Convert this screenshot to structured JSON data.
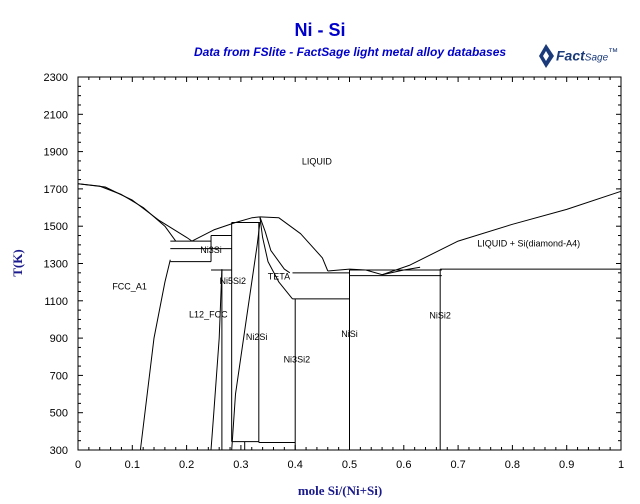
{
  "diagram": {
    "title": "Ni - Si",
    "subtitle": "Data from FSlite - FactSage light metal alloy databases",
    "logo": {
      "brand": "Fact",
      "suffix": "Sage",
      "mark": "™"
    },
    "xlabel": "mole Si/(Ni+Si)",
    "ylabel": "T(K)",
    "x_ticks": [
      "0",
      "0.1",
      "0.2",
      "0.3",
      "0.4",
      "0.5",
      "0.6",
      "0.7",
      "0.8",
      "0.9",
      "1"
    ],
    "y_ticks": [
      "300",
      "500",
      "700",
      "900",
      "1100",
      "1300",
      "1500",
      "1700",
      "1900",
      "2100",
      "2300"
    ],
    "phases": [
      "LIQUID",
      "LIQUID + Si(diamond-A4)",
      "FCC_A1",
      "L12_FCC",
      "Ni3Si",
      "Ni5Si2",
      "TETA",
      "Ni2Si",
      "Ni3Si2",
      "NiSi",
      "NiSi2"
    ],
    "colors": {
      "title": "#0000cc",
      "axis_label": "#1a1a8c",
      "lines": "#000000"
    }
  },
  "chart_data": {
    "type": "phase-diagram",
    "xlim": [
      0,
      1
    ],
    "ylim": [
      300,
      2300
    ],
    "xlabel": "mole Si/(Ni+Si)",
    "ylabel": "T(K)",
    "grid": false,
    "curves": [
      {
        "x": [
          0,
          0.05,
          0.1,
          0.15,
          0.2,
          0.21
        ],
        "y": [
          1728,
          1710,
          1640,
          1530,
          1440,
          1420
        ]
      },
      {
        "x": [
          0,
          0.04,
          0.08,
          0.12,
          0.16,
          0.18
        ],
        "y": [
          1728,
          1715,
          1670,
          1600,
          1500,
          1420
        ]
      },
      {
        "x": [
          0.21,
          0.25,
          0.29,
          0.32,
          0.335
        ],
        "y": [
          1420,
          1480,
          1520,
          1545,
          1550
        ]
      },
      {
        "x": [
          0.335,
          0.37,
          0.41,
          0.45,
          0.46
        ],
        "y": [
          1550,
          1545,
          1460,
          1330,
          1260
        ]
      },
      {
        "x": [
          0.335,
          0.34,
          0.35,
          0.37,
          0.395
        ],
        "y": [
          1550,
          1440,
          1310,
          1200,
          1110
        ]
      },
      {
        "x": [
          0.335,
          0.345,
          0.355,
          0.38,
          0.39
        ],
        "y": [
          1550,
          1470,
          1370,
          1270,
          1250
        ]
      },
      {
        "x": [
          0.46,
          0.5,
          0.53,
          0.56
        ],
        "y": [
          1260,
          1270,
          1265,
          1240
        ]
      },
      {
        "x": [
          0.56,
          0.61,
          0.7,
          0.8,
          0.9,
          1.0
        ],
        "y": [
          1240,
          1290,
          1420,
          1510,
          1590,
          1687
        ]
      },
      {
        "x": [
          0.56,
          0.6,
          0.63
        ],
        "y": [
          1240,
          1265,
          1280
        ]
      },
      {
        "x": [
          0.115,
          0.14,
          0.16,
          0.17
        ],
        "y": [
          300,
          900,
          1200,
          1320
        ]
      },
      {
        "x": [
          0.245,
          0.25,
          0.255,
          0.26,
          0.265
        ],
        "y": [
          300,
          500,
          700,
          900,
          1270
        ]
      },
      {
        "x": [
          0.283,
          0.29,
          0.31,
          0.33,
          0.335
        ],
        "y": [
          300,
          600,
          1000,
          1400,
          1520
        ]
      }
    ],
    "lines": [
      {
        "x": [
          0.17,
          0.245
        ],
        "y": [
          1420,
          1420
        ]
      },
      {
        "x": [
          0.17,
          0.283
        ],
        "y": [
          1380,
          1380
        ]
      },
      {
        "x": [
          0.17,
          0.245
        ],
        "y": [
          1310,
          1310
        ]
      },
      {
        "x": [
          0.245,
          0.283
        ],
        "y": [
          1450,
          1450
        ]
      },
      {
        "x": [
          0.245,
          0.283
        ],
        "y": [
          1265,
          1265
        ]
      },
      {
        "x": [
          0.283,
          0.335
        ],
        "y": [
          1520,
          1520
        ]
      },
      {
        "x": [
          0.283,
          0.333
        ],
        "y": [
          345,
          345
        ]
      },
      {
        "x": [
          0.333,
          0.4
        ],
        "y": [
          340,
          340
        ]
      },
      {
        "x": [
          0.395,
          0.5
        ],
        "y": [
          1250,
          1250
        ]
      },
      {
        "x": [
          0.395,
          0.5
        ],
        "y": [
          1110,
          1110
        ]
      },
      {
        "x": [
          0.5,
          0.67
        ],
        "y": [
          1265,
          1265
        ]
      },
      {
        "x": [
          0.5,
          0.67
        ],
        "y": [
          1235,
          1235
        ]
      },
      {
        "x": [
          0.667,
          1.0
        ],
        "y": [
          1270,
          1270
        ]
      },
      {
        "x": [
          0.245,
          0.245
        ],
        "y": [
          1310,
          1450
        ]
      },
      {
        "x": [
          0.265,
          0.265
        ],
        "y": [
          300,
          1265
        ]
      },
      {
        "x": [
          0.283,
          0.283
        ],
        "y": [
          345,
          1520
        ]
      },
      {
        "x": [
          0.307,
          0.307
        ],
        "y": [
          300,
          345
        ]
      },
      {
        "x": [
          0.333,
          0.333
        ],
        "y": [
          340,
          1520
        ]
      },
      {
        "x": [
          0.4,
          0.4
        ],
        "y": [
          300,
          1110
        ]
      },
      {
        "x": [
          0.5,
          0.5
        ],
        "y": [
          300,
          1265
        ]
      },
      {
        "x": [
          0.667,
          0.667
        ],
        "y": [
          300,
          1270
        ]
      }
    ],
    "labels": [
      {
        "text": "LIQUID",
        "x": 0.44,
        "y": 1830
      },
      {
        "text": "LIQUID + Si(diamond-A4)",
        "x": 0.83,
        "y": 1390
      },
      {
        "text": "FCC_A1",
        "x": 0.095,
        "y": 1160
      },
      {
        "text": "L12_FCC",
        "x": 0.24,
        "y": 1010
      },
      {
        "text": "Ni3Si",
        "x": 0.245,
        "y": 1355
      },
      {
        "text": "Ni5Si2",
        "x": 0.285,
        "y": 1190
      },
      {
        "text": "TETA",
        "x": 0.37,
        "y": 1215
      },
      {
        "text": "Ni2Si",
        "x": 0.329,
        "y": 890
      },
      {
        "text": "Ni3Si2",
        "x": 0.403,
        "y": 770
      },
      {
        "text": "NiSi",
        "x": 0.5,
        "y": 905
      },
      {
        "text": "NiSi2",
        "x": 0.667,
        "y": 1005
      }
    ]
  }
}
